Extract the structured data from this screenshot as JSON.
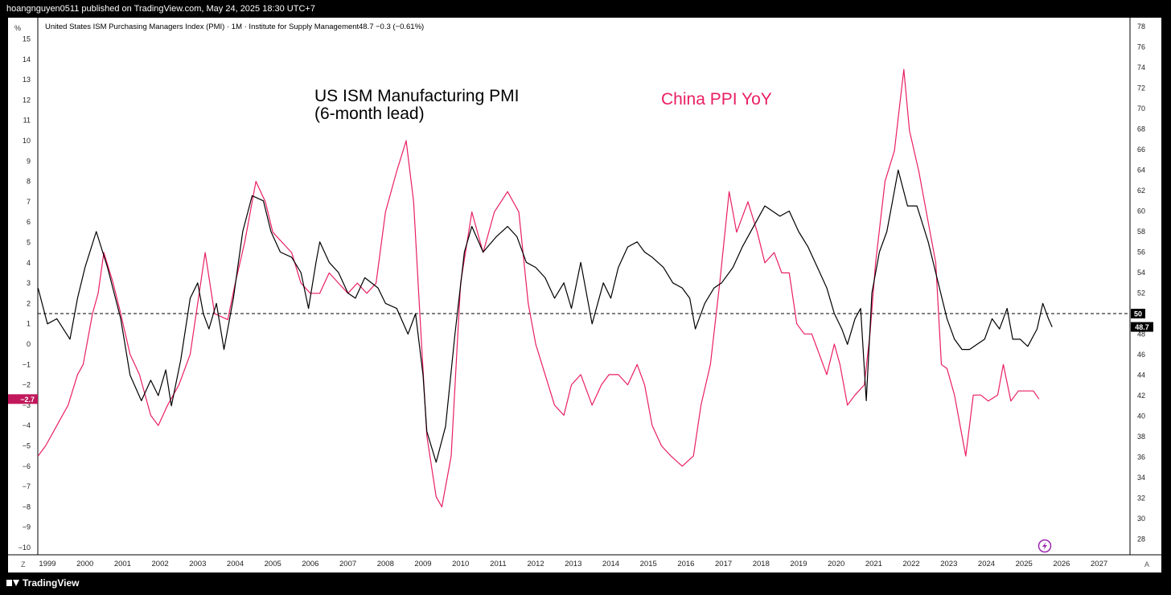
{
  "header": {
    "published_text": "hoangnguyen0511 published on TradingView.com, May 24, 2025 18:30 UTC+7"
  },
  "legend": {
    "symbol_text": "United States ISM Purchasing Managers Index (PMI) · 1M · Institute for Supply Management",
    "last_value": "48.7",
    "change": "−0.3 (−0.61%)"
  },
  "annotations": {
    "pmi_line1": "US ISM Manufacturing PMI",
    "pmi_line2": "(6-month lead)",
    "ppi_label": "China PPI YoY"
  },
  "axis_corner": {
    "left_unit": "%",
    "bottom_left": "Z",
    "bottom_right": "A"
  },
  "footer": {
    "brand": "TradingView"
  },
  "colors": {
    "pmi_line": "#000000",
    "ppi_line": "#e91e63",
    "badge_left": "#c2185b",
    "badge_right": "#000000"
  },
  "chart_data": {
    "type": "line",
    "x_axis": {
      "labels": [
        "1999",
        "2000",
        "2001",
        "2002",
        "2003",
        "2004",
        "2005",
        "2006",
        "2007",
        "2008",
        "2009",
        "2010",
        "2011",
        "2012",
        "2013",
        "2014",
        "2015",
        "2016",
        "2017",
        "2018",
        "2019",
        "2020",
        "2021",
        "2022",
        "2023",
        "2024",
        "2025",
        "2026",
        "2027"
      ]
    },
    "left_axis": {
      "ticks": [
        15,
        14,
        13,
        12,
        11,
        10,
        9,
        8,
        7,
        6,
        5,
        4,
        3,
        2,
        1,
        0,
        -1,
        -2,
        -3,
        -4,
        -5,
        -6,
        -7,
        -8,
        -9,
        -10
      ],
      "range": [
        -10,
        15
      ],
      "current_badge": "−2.7",
      "current_value": -2.7
    },
    "right_axis": {
      "ticks": [
        78,
        76,
        74,
        72,
        70,
        68,
        66,
        64,
        62,
        60,
        58,
        56,
        54,
        52,
        50,
        48,
        46,
        44,
        42,
        40,
        38,
        36,
        34,
        32,
        30,
        28
      ],
      "range": [
        27,
        78.2
      ],
      "reference_value": 50,
      "reference_label": "50",
      "current_badge": "48.7",
      "current_value": 48.7
    },
    "series": [
      {
        "name": "US ISM Manufacturing PMI",
        "axis": "right",
        "points": [
          [
            1998.75,
            52.5
          ],
          [
            1999.0,
            49.0
          ],
          [
            1999.25,
            49.5
          ],
          [
            1999.6,
            47.5
          ],
          [
            1999.8,
            51.5
          ],
          [
            2000.0,
            54.5
          ],
          [
            2000.3,
            58.0
          ],
          [
            2000.6,
            54.5
          ],
          [
            2000.95,
            49.5
          ],
          [
            2001.2,
            44.0
          ],
          [
            2001.5,
            41.5
          ],
          [
            2001.75,
            43.5
          ],
          [
            2001.95,
            42.0
          ],
          [
            2002.15,
            44.5
          ],
          [
            2002.3,
            41.0
          ],
          [
            2002.55,
            45.5
          ],
          [
            2002.8,
            51.5
          ],
          [
            2003.0,
            53.0
          ],
          [
            2003.15,
            50.0
          ],
          [
            2003.3,
            48.5
          ],
          [
            2003.5,
            51.0
          ],
          [
            2003.7,
            46.5
          ],
          [
            2003.95,
            51.5
          ],
          [
            2004.2,
            58.0
          ],
          [
            2004.45,
            61.5
          ],
          [
            2004.75,
            61.0
          ],
          [
            2004.95,
            58.0
          ],
          [
            2005.2,
            56.0
          ],
          [
            2005.5,
            55.5
          ],
          [
            2005.75,
            54.0
          ],
          [
            2005.95,
            50.5
          ],
          [
            2006.15,
            55.0
          ],
          [
            2006.25,
            57.0
          ],
          [
            2006.5,
            55.0
          ],
          [
            2006.75,
            54.0
          ],
          [
            2007.0,
            52.0
          ],
          [
            2007.2,
            51.5
          ],
          [
            2007.45,
            53.5
          ],
          [
            2007.8,
            52.5
          ],
          [
            2008.0,
            51.0
          ],
          [
            2008.3,
            50.5
          ],
          [
            2008.6,
            48.0
          ],
          [
            2008.8,
            50.0
          ],
          [
            2009.0,
            44.0
          ],
          [
            2009.1,
            38.5
          ],
          [
            2009.35,
            35.5
          ],
          [
            2009.6,
            39.0
          ],
          [
            2009.85,
            48.0
          ],
          [
            2010.1,
            56.0
          ],
          [
            2010.3,
            58.5
          ],
          [
            2010.6,
            56.0
          ],
          [
            2010.95,
            57.5
          ],
          [
            2011.25,
            58.5
          ],
          [
            2011.5,
            57.5
          ],
          [
            2011.75,
            55.0
          ],
          [
            2012.0,
            54.5
          ],
          [
            2012.25,
            53.5
          ],
          [
            2012.5,
            51.5
          ],
          [
            2012.75,
            53.0
          ],
          [
            2012.95,
            50.5
          ],
          [
            2013.2,
            55.0
          ],
          [
            2013.5,
            49.0
          ],
          [
            2013.8,
            53.0
          ],
          [
            2014.0,
            51.5
          ],
          [
            2014.2,
            54.5
          ],
          [
            2014.45,
            56.5
          ],
          [
            2014.7,
            57.0
          ],
          [
            2014.9,
            56.0
          ],
          [
            2015.1,
            55.5
          ],
          [
            2015.4,
            54.5
          ],
          [
            2015.65,
            53.0
          ],
          [
            2015.9,
            52.5
          ],
          [
            2016.1,
            51.5
          ],
          [
            2016.25,
            48.5
          ],
          [
            2016.5,
            51.0
          ],
          [
            2016.75,
            52.5
          ],
          [
            2016.95,
            53.0
          ],
          [
            2017.25,
            54.5
          ],
          [
            2017.5,
            56.5
          ],
          [
            2017.8,
            58.5
          ],
          [
            2018.1,
            60.5
          ],
          [
            2018.5,
            59.5
          ],
          [
            2018.75,
            60.0
          ],
          [
            2019.0,
            58.0
          ],
          [
            2019.25,
            56.5
          ],
          [
            2019.5,
            54.5
          ],
          [
            2019.75,
            52.5
          ],
          [
            2019.95,
            50.0
          ],
          [
            2020.15,
            48.5
          ],
          [
            2020.3,
            47.0
          ],
          [
            2020.5,
            49.5
          ],
          [
            2020.65,
            50.5
          ],
          [
            2020.8,
            41.5
          ],
          [
            2020.95,
            52.0
          ],
          [
            2021.15,
            56.0
          ],
          [
            2021.35,
            58.0
          ],
          [
            2021.5,
            61.0
          ],
          [
            2021.65,
            64.0
          ],
          [
            2021.9,
            60.5
          ],
          [
            2022.15,
            60.5
          ],
          [
            2022.45,
            57.0
          ],
          [
            2022.75,
            52.5
          ],
          [
            2022.95,
            49.5
          ],
          [
            2023.15,
            47.5
          ],
          [
            2023.35,
            46.5
          ],
          [
            2023.55,
            46.5
          ],
          [
            2023.75,
            47.0
          ],
          [
            2023.95,
            47.5
          ],
          [
            2024.15,
            49.5
          ],
          [
            2024.35,
            48.5
          ],
          [
            2024.55,
            50.5
          ],
          [
            2024.7,
            47.5
          ],
          [
            2024.9,
            47.5
          ],
          [
            2025.1,
            46.8
          ],
          [
            2025.35,
            48.5
          ],
          [
            2025.5,
            51.0
          ],
          [
            2025.65,
            49.5
          ],
          [
            2025.75,
            48.7
          ]
        ]
      },
      {
        "name": "China PPI YoY",
        "axis": "left",
        "points": [
          [
            1998.75,
            -5.5
          ],
          [
            1998.95,
            -5.0
          ],
          [
            1999.25,
            -4.0
          ],
          [
            1999.55,
            -3.0
          ],
          [
            1999.8,
            -1.5
          ],
          [
            1999.95,
            -1.0
          ],
          [
            2000.2,
            1.5
          ],
          [
            2000.35,
            2.5
          ],
          [
            2000.5,
            4.5
          ],
          [
            2000.75,
            3.0
          ],
          [
            2000.95,
            1.5
          ],
          [
            2001.2,
            -0.5
          ],
          [
            2001.45,
            -1.5
          ],
          [
            2001.75,
            -3.5
          ],
          [
            2001.95,
            -4.0
          ],
          [
            2002.2,
            -3.0
          ],
          [
            2002.5,
            -2.0
          ],
          [
            2002.8,
            -0.5
          ],
          [
            2003.0,
            2.0
          ],
          [
            2003.2,
            4.5
          ],
          [
            2003.45,
            1.5
          ],
          [
            2003.8,
            1.2
          ],
          [
            2004.0,
            3.0
          ],
          [
            2004.25,
            5.0
          ],
          [
            2004.55,
            8.0
          ],
          [
            2004.8,
            7.0
          ],
          [
            2005.0,
            5.5
          ],
          [
            2005.25,
            5.0
          ],
          [
            2005.5,
            4.5
          ],
          [
            2005.75,
            3.0
          ],
          [
            2006.0,
            2.5
          ],
          [
            2006.25,
            2.5
          ],
          [
            2006.5,
            3.5
          ],
          [
            2006.75,
            3.0
          ],
          [
            2007.0,
            2.5
          ],
          [
            2007.25,
            3.0
          ],
          [
            2007.5,
            2.5
          ],
          [
            2007.75,
            3.0
          ],
          [
            2008.0,
            6.5
          ],
          [
            2008.3,
            8.5
          ],
          [
            2008.55,
            10.0
          ],
          [
            2008.75,
            7.0
          ],
          [
            2008.9,
            2.0
          ],
          [
            2009.1,
            -4.5
          ],
          [
            2009.35,
            -7.5
          ],
          [
            2009.5,
            -8.0
          ],
          [
            2009.75,
            -5.5
          ],
          [
            2010.0,
            3.0
          ],
          [
            2010.3,
            6.5
          ],
          [
            2010.6,
            4.5
          ],
          [
            2010.9,
            6.5
          ],
          [
            2011.25,
            7.5
          ],
          [
            2011.55,
            6.5
          ],
          [
            2011.8,
            2.0
          ],
          [
            2012.0,
            0.0
          ],
          [
            2012.25,
            -1.5
          ],
          [
            2012.5,
            -3.0
          ],
          [
            2012.75,
            -3.5
          ],
          [
            2012.95,
            -2.0
          ],
          [
            2013.2,
            -1.5
          ],
          [
            2013.5,
            -3.0
          ],
          [
            2013.75,
            -2.0
          ],
          [
            2013.95,
            -1.5
          ],
          [
            2014.2,
            -1.5
          ],
          [
            2014.45,
            -2.0
          ],
          [
            2014.7,
            -1.0
          ],
          [
            2014.9,
            -2.0
          ],
          [
            2015.1,
            -4.0
          ],
          [
            2015.35,
            -5.0
          ],
          [
            2015.6,
            -5.5
          ],
          [
            2015.9,
            -6.0
          ],
          [
            2016.2,
            -5.5
          ],
          [
            2016.4,
            -3.0
          ],
          [
            2016.65,
            -1.0
          ],
          [
            2016.9,
            3.0
          ],
          [
            2017.15,
            7.5
          ],
          [
            2017.35,
            5.5
          ],
          [
            2017.65,
            7.0
          ],
          [
            2017.9,
            5.5
          ],
          [
            2018.1,
            4.0
          ],
          [
            2018.35,
            4.5
          ],
          [
            2018.55,
            3.5
          ],
          [
            2018.75,
            3.5
          ],
          [
            2018.95,
            1.0
          ],
          [
            2019.15,
            0.5
          ],
          [
            2019.35,
            0.5
          ],
          [
            2019.55,
            -0.5
          ],
          [
            2019.75,
            -1.5
          ],
          [
            2019.95,
            0.0
          ],
          [
            2020.1,
            -1.0
          ],
          [
            2020.3,
            -3.0
          ],
          [
            2020.5,
            -2.5
          ],
          [
            2020.75,
            -2.0
          ],
          [
            2020.9,
            0.5
          ],
          [
            2021.05,
            4.0
          ],
          [
            2021.3,
            8.0
          ],
          [
            2021.55,
            9.5
          ],
          [
            2021.8,
            13.5
          ],
          [
            2021.95,
            10.5
          ],
          [
            2022.2,
            8.5
          ],
          [
            2022.45,
            6.0
          ],
          [
            2022.65,
            4.0
          ],
          [
            2022.8,
            -1.0
          ],
          [
            2022.95,
            -1.2
          ],
          [
            2023.15,
            -2.5
          ],
          [
            2023.35,
            -4.5
          ],
          [
            2023.45,
            -5.5
          ],
          [
            2023.65,
            -2.5
          ],
          [
            2023.85,
            -2.5
          ],
          [
            2024.05,
            -2.8
          ],
          [
            2024.3,
            -2.5
          ],
          [
            2024.45,
            -1.0
          ],
          [
            2024.65,
            -2.8
          ],
          [
            2024.85,
            -2.3
          ],
          [
            2025.05,
            -2.3
          ],
          [
            2025.25,
            -2.3
          ],
          [
            2025.4,
            -2.7
          ]
        ]
      }
    ]
  }
}
